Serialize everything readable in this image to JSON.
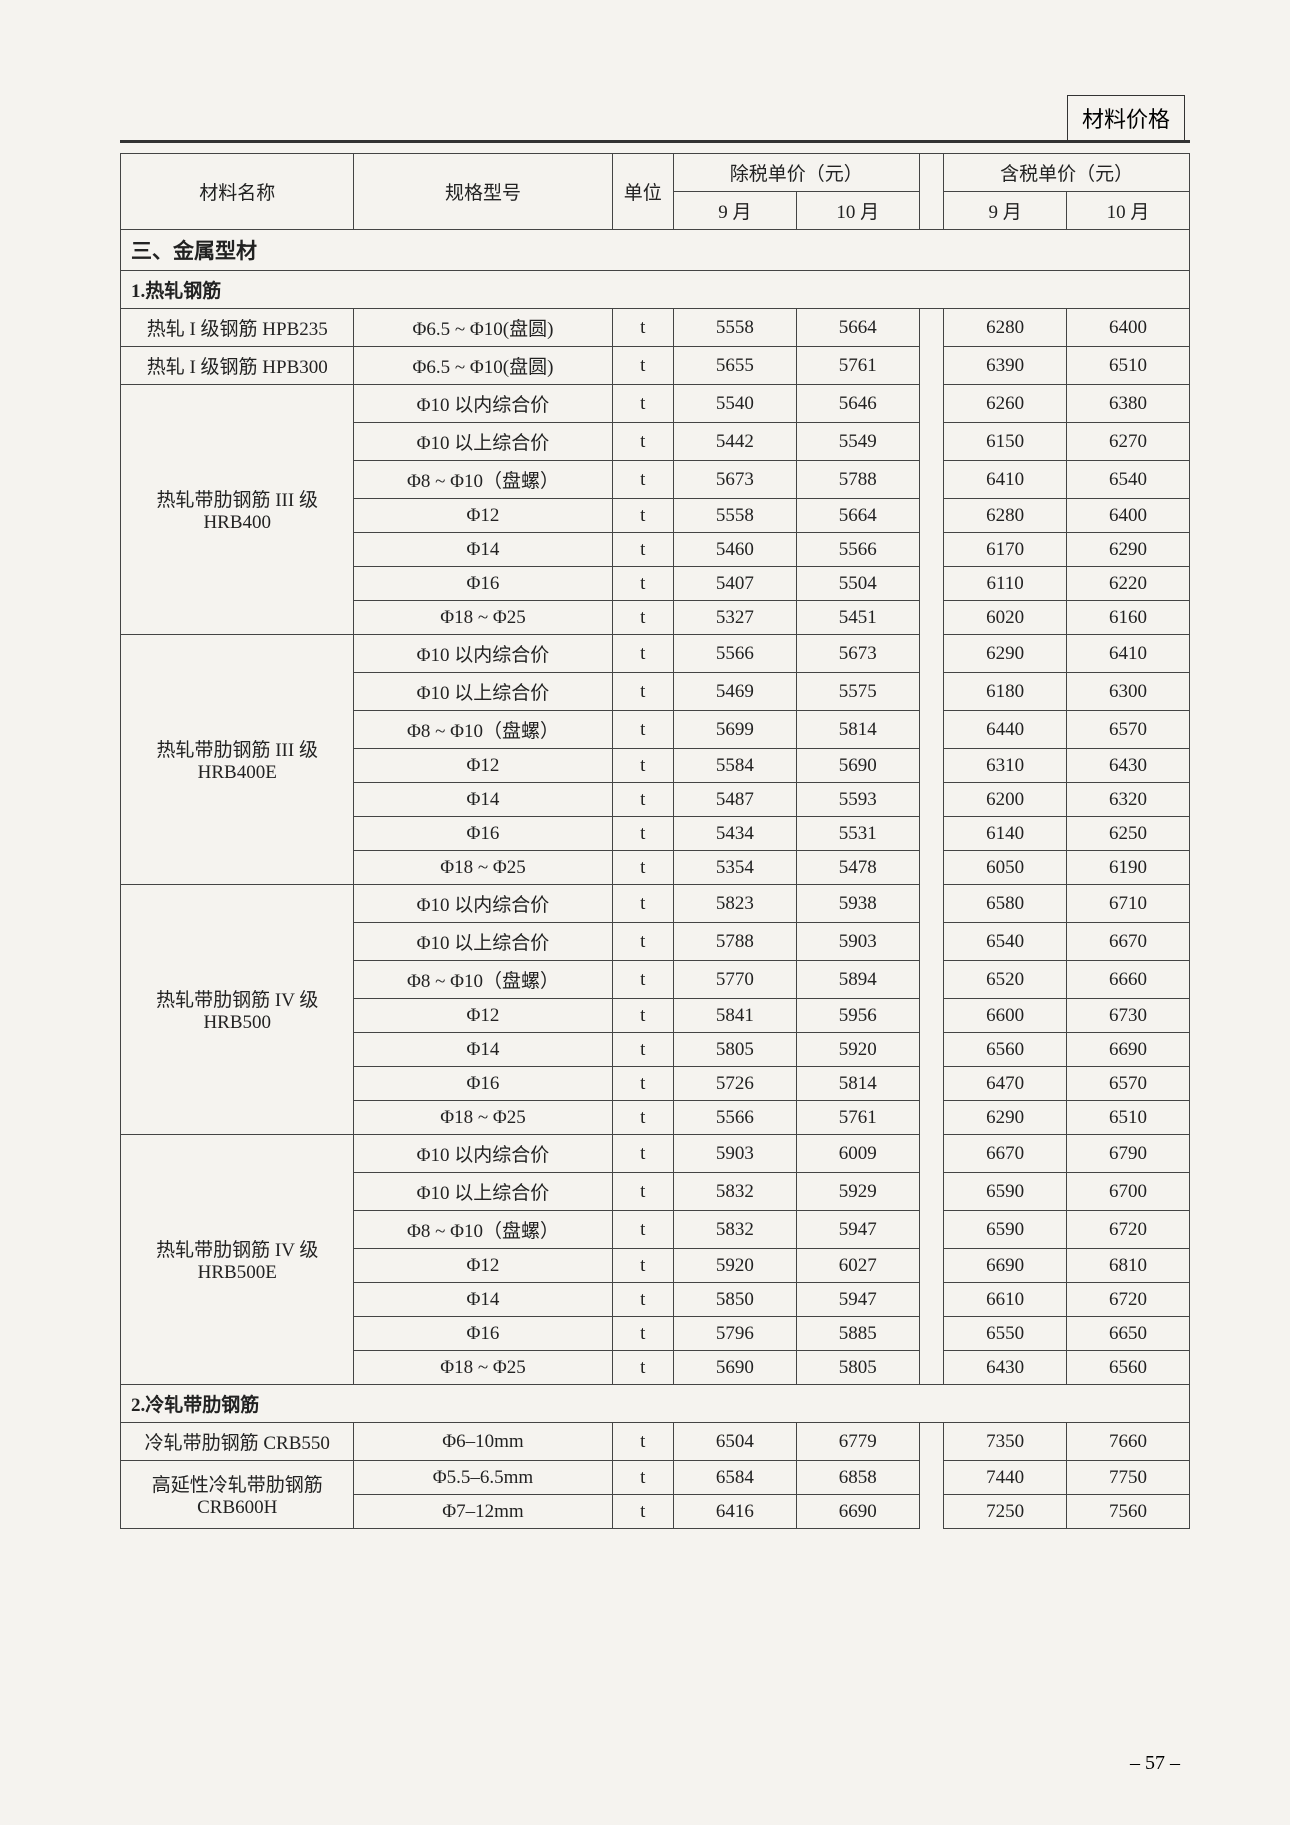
{
  "header_label": "材料价格",
  "page_number": "– 57 –",
  "table": {
    "header": {
      "col_name": "材料名称",
      "col_spec": "规格型号",
      "col_unit": "单位",
      "col_excl": "除税单价（元）",
      "col_incl": "含税单价（元）",
      "col_m9": "9 月",
      "col_m10": "10 月"
    },
    "section_title": "三、金属型材",
    "sub1_title": "1.热轧钢筋",
    "sub2_title": "2.冷轧带肋钢筋",
    "groups": [
      {
        "name": "热轧 I 级钢筋 HPB235",
        "rows": [
          {
            "spec": "Φ6.5 ~ Φ10(盘圆)",
            "unit": "t",
            "p9e": "5558",
            "p10e": "5664",
            "p9i": "6280",
            "p10i": "6400"
          }
        ]
      },
      {
        "name": "热轧 I 级钢筋 HPB300",
        "rows": [
          {
            "spec": "Φ6.5 ~ Φ10(盘圆)",
            "unit": "t",
            "p9e": "5655",
            "p10e": "5761",
            "p9i": "6390",
            "p10i": "6510"
          }
        ]
      },
      {
        "name": "热轧带肋钢筋 III 级 HRB400",
        "rows": [
          {
            "spec": "Φ10 以内综合价",
            "unit": "t",
            "p9e": "5540",
            "p10e": "5646",
            "p9i": "6260",
            "p10i": "6380"
          },
          {
            "spec": "Φ10 以上综合价",
            "unit": "t",
            "p9e": "5442",
            "p10e": "5549",
            "p9i": "6150",
            "p10i": "6270"
          },
          {
            "spec": "Φ8 ~ Φ10（盘螺）",
            "unit": "t",
            "p9e": "5673",
            "p10e": "5788",
            "p9i": "6410",
            "p10i": "6540"
          },
          {
            "spec": "Φ12",
            "unit": "t",
            "p9e": "5558",
            "p10e": "5664",
            "p9i": "6280",
            "p10i": "6400"
          },
          {
            "spec": "Φ14",
            "unit": "t",
            "p9e": "5460",
            "p10e": "5566",
            "p9i": "6170",
            "p10i": "6290"
          },
          {
            "spec": "Φ16",
            "unit": "t",
            "p9e": "5407",
            "p10e": "5504",
            "p9i": "6110",
            "p10i": "6220"
          },
          {
            "spec": "Φ18 ~ Φ25",
            "unit": "t",
            "p9e": "5327",
            "p10e": "5451",
            "p9i": "6020",
            "p10i": "6160"
          }
        ]
      },
      {
        "name": "热轧带肋钢筋 III 级 HRB400E",
        "rows": [
          {
            "spec": "Φ10 以内综合价",
            "unit": "t",
            "p9e": "5566",
            "p10e": "5673",
            "p9i": "6290",
            "p10i": "6410"
          },
          {
            "spec": "Φ10 以上综合价",
            "unit": "t",
            "p9e": "5469",
            "p10e": "5575",
            "p9i": "6180",
            "p10i": "6300"
          },
          {
            "spec": "Φ8 ~ Φ10（盘螺）",
            "unit": "t",
            "p9e": "5699",
            "p10e": "5814",
            "p9i": "6440",
            "p10i": "6570"
          },
          {
            "spec": "Φ12",
            "unit": "t",
            "p9e": "5584",
            "p10e": "5690",
            "p9i": "6310",
            "p10i": "6430"
          },
          {
            "spec": "Φ14",
            "unit": "t",
            "p9e": "5487",
            "p10e": "5593",
            "p9i": "6200",
            "p10i": "6320"
          },
          {
            "spec": "Φ16",
            "unit": "t",
            "p9e": "5434",
            "p10e": "5531",
            "p9i": "6140",
            "p10i": "6250"
          },
          {
            "spec": "Φ18 ~ Φ25",
            "unit": "t",
            "p9e": "5354",
            "p10e": "5478",
            "p9i": "6050",
            "p10i": "6190"
          }
        ]
      },
      {
        "name": "热轧带肋钢筋 IV 级 HRB500",
        "rows": [
          {
            "spec": "Φ10 以内综合价",
            "unit": "t",
            "p9e": "5823",
            "p10e": "5938",
            "p9i": "6580",
            "p10i": "6710"
          },
          {
            "spec": "Φ10 以上综合价",
            "unit": "t",
            "p9e": "5788",
            "p10e": "5903",
            "p9i": "6540",
            "p10i": "6670"
          },
          {
            "spec": "Φ8 ~ Φ10（盘螺）",
            "unit": "t",
            "p9e": "5770",
            "p10e": "5894",
            "p9i": "6520",
            "p10i": "6660"
          },
          {
            "spec": "Φ12",
            "unit": "t",
            "p9e": "5841",
            "p10e": "5956",
            "p9i": "6600",
            "p10i": "6730"
          },
          {
            "spec": "Φ14",
            "unit": "t",
            "p9e": "5805",
            "p10e": "5920",
            "p9i": "6560",
            "p10i": "6690"
          },
          {
            "spec": "Φ16",
            "unit": "t",
            "p9e": "5726",
            "p10e": "5814",
            "p9i": "6470",
            "p10i": "6570"
          },
          {
            "spec": "Φ18 ~ Φ25",
            "unit": "t",
            "p9e": "5566",
            "p10e": "5761",
            "p9i": "6290",
            "p10i": "6510"
          }
        ]
      },
      {
        "name": "热轧带肋钢筋 IV 级 HRB500E",
        "rows": [
          {
            "spec": "Φ10 以内综合价",
            "unit": "t",
            "p9e": "5903",
            "p10e": "6009",
            "p9i": "6670",
            "p10i": "6790"
          },
          {
            "spec": "Φ10 以上综合价",
            "unit": "t",
            "p9e": "5832",
            "p10e": "5929",
            "p9i": "6590",
            "p10i": "6700"
          },
          {
            "spec": "Φ8 ~ Φ10（盘螺）",
            "unit": "t",
            "p9e": "5832",
            "p10e": "5947",
            "p9i": "6590",
            "p10i": "6720"
          },
          {
            "spec": "Φ12",
            "unit": "t",
            "p9e": "5920",
            "p10e": "6027",
            "p9i": "6690",
            "p10i": "6810"
          },
          {
            "spec": "Φ14",
            "unit": "t",
            "p9e": "5850",
            "p10e": "5947",
            "p9i": "6610",
            "p10i": "6720"
          },
          {
            "spec": "Φ16",
            "unit": "t",
            "p9e": "5796",
            "p10e": "5885",
            "p9i": "6550",
            "p10i": "6650"
          },
          {
            "spec": "Φ18 ~ Φ25",
            "unit": "t",
            "p9e": "5690",
            "p10e": "5805",
            "p9i": "6430",
            "p10i": "6560"
          }
        ]
      }
    ],
    "groups2": [
      {
        "name": "冷轧带肋钢筋 CRB550",
        "rows": [
          {
            "spec": "Φ6–10mm",
            "unit": "t",
            "p9e": "6504",
            "p10e": "6779",
            "p9i": "7350",
            "p10i": "7660"
          }
        ]
      },
      {
        "name": "高延性冷轧带肋钢筋 CRB600H",
        "rows": [
          {
            "spec": "Φ5.5–6.5mm",
            "unit": "t",
            "p9e": "6584",
            "p10e": "6858",
            "p9i": "7440",
            "p10i": "7750"
          },
          {
            "spec": "Φ7–12mm",
            "unit": "t",
            "p9e": "6416",
            "p10e": "6690",
            "p9i": "7250",
            "p10i": "7560"
          }
        ]
      }
    ]
  }
}
